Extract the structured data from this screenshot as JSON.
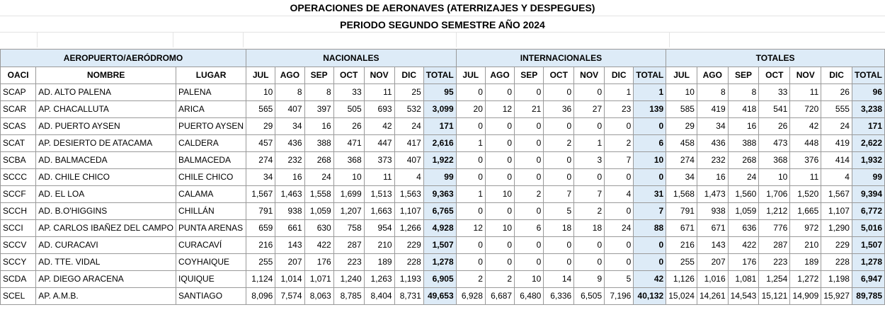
{
  "title": "OPERACIONES DE AERONAVES (ATERRIZAJES Y DESPEGUES)",
  "subtitle": "PERIODO SEGUNDO SEMESTRE AÑO 2024",
  "groups": {
    "airport": "AEROPUERTO/AERÓDROMO",
    "nacionales": "NACIONALES",
    "internacionales": "INTERNACIONALES",
    "totales": "TOTALES"
  },
  "columns": {
    "oaci": "OACI",
    "nombre": "NOMBRE",
    "lugar": "LUGAR",
    "months": [
      "JUL",
      "AGO",
      "SEP",
      "OCT",
      "NOV",
      "DIC"
    ],
    "total": "TOTAL"
  },
  "rows": [
    {
      "oaci": "SCAP",
      "nombre": "AD. ALTO PALENA",
      "lugar": "PALENA",
      "nac": [
        "10",
        "8",
        "8",
        "33",
        "11",
        "25",
        "95"
      ],
      "int": [
        "0",
        "0",
        "0",
        "0",
        "0",
        "1",
        "1"
      ],
      "tot": [
        "10",
        "8",
        "8",
        "33",
        "11",
        "26",
        "96"
      ]
    },
    {
      "oaci": "SCAR",
      "nombre": "AP. CHACALLUTA",
      "lugar": "ARICA",
      "nac": [
        "565",
        "407",
        "397",
        "505",
        "693",
        "532",
        "3,099"
      ],
      "int": [
        "20",
        "12",
        "21",
        "36",
        "27",
        "23",
        "139"
      ],
      "tot": [
        "585",
        "419",
        "418",
        "541",
        "720",
        "555",
        "3,238"
      ]
    },
    {
      "oaci": "SCAS",
      "nombre": "AD. PUERTO AYSEN",
      "lugar": "PUERTO AYSEN",
      "nac": [
        "29",
        "34",
        "16",
        "26",
        "42",
        "24",
        "171"
      ],
      "int": [
        "0",
        "0",
        "0",
        "0",
        "0",
        "0",
        "0"
      ],
      "tot": [
        "29",
        "34",
        "16",
        "26",
        "42",
        "24",
        "171"
      ]
    },
    {
      "oaci": "SCAT",
      "nombre": "AP. DESIERTO DE ATACAMA",
      "lugar": "CALDERA",
      "nac": [
        "457",
        "436",
        "388",
        "471",
        "447",
        "417",
        "2,616"
      ],
      "int": [
        "1",
        "0",
        "0",
        "2",
        "1",
        "2",
        "6"
      ],
      "tot": [
        "458",
        "436",
        "388",
        "473",
        "448",
        "419",
        "2,622"
      ]
    },
    {
      "oaci": "SCBA",
      "nombre": "AD. BALMACEDA",
      "lugar": "BALMACEDA",
      "nac": [
        "274",
        "232",
        "268",
        "368",
        "373",
        "407",
        "1,922"
      ],
      "int": [
        "0",
        "0",
        "0",
        "0",
        "3",
        "7",
        "10"
      ],
      "tot": [
        "274",
        "232",
        "268",
        "368",
        "376",
        "414",
        "1,932"
      ]
    },
    {
      "oaci": "SCCC",
      "nombre": "AD. CHILE CHICO",
      "lugar": "CHILE CHICO",
      "nac": [
        "34",
        "16",
        "24",
        "10",
        "11",
        "4",
        "99"
      ],
      "int": [
        "0",
        "0",
        "0",
        "0",
        "0",
        "0",
        "0"
      ],
      "tot": [
        "34",
        "16",
        "24",
        "10",
        "11",
        "4",
        "99"
      ]
    },
    {
      "oaci": "SCCF",
      "nombre": "AD. EL LOA",
      "lugar": "CALAMA",
      "nac": [
        "1,567",
        "1,463",
        "1,558",
        "1,699",
        "1,513",
        "1,563",
        "9,363"
      ],
      "int": [
        "1",
        "10",
        "2",
        "7",
        "7",
        "4",
        "31"
      ],
      "tot": [
        "1,568",
        "1,473",
        "1,560",
        "1,706",
        "1,520",
        "1,567",
        "9,394"
      ]
    },
    {
      "oaci": "SCCH",
      "nombre": "AD. B.O'HIGGINS",
      "lugar": "CHILLÁN",
      "nac": [
        "791",
        "938",
        "1,059",
        "1,207",
        "1,663",
        "1,107",
        "6,765"
      ],
      "int": [
        "0",
        "0",
        "0",
        "5",
        "2",
        "0",
        "7"
      ],
      "tot": [
        "791",
        "938",
        "1,059",
        "1,212",
        "1,665",
        "1,107",
        "6,772"
      ]
    },
    {
      "oaci": "SCCI",
      "nombre": "AP. CARLOS IBAÑEZ DEL CAMPO",
      "lugar": "PUNTA ARENAS",
      "nac": [
        "659",
        "661",
        "630",
        "758",
        "954",
        "1,266",
        "4,928"
      ],
      "int": [
        "12",
        "10",
        "6",
        "18",
        "18",
        "24",
        "88"
      ],
      "tot": [
        "671",
        "671",
        "636",
        "776",
        "972",
        "1,290",
        "5,016"
      ]
    },
    {
      "oaci": "SCCV",
      "nombre": "AD. CURACAVI",
      "lugar": "CURACAVÍ",
      "nac": [
        "216",
        "143",
        "422",
        "287",
        "210",
        "229",
        "1,507"
      ],
      "int": [
        "0",
        "0",
        "0",
        "0",
        "0",
        "0",
        "0"
      ],
      "tot": [
        "216",
        "143",
        "422",
        "287",
        "210",
        "229",
        "1,507"
      ]
    },
    {
      "oaci": "SCCY",
      "nombre": "AD. TTE. VIDAL",
      "lugar": "COYHAIQUE",
      "nac": [
        "255",
        "207",
        "176",
        "223",
        "189",
        "228",
        "1,278"
      ],
      "int": [
        "0",
        "0",
        "0",
        "0",
        "0",
        "0",
        "0"
      ],
      "tot": [
        "255",
        "207",
        "176",
        "223",
        "189",
        "228",
        "1,278"
      ]
    },
    {
      "oaci": "SCDA",
      "nombre": "AP. DIEGO ARACENA",
      "lugar": "IQUIQUE",
      "nac": [
        "1,124",
        "1,014",
        "1,071",
        "1,240",
        "1,263",
        "1,193",
        "6,905"
      ],
      "int": [
        "2",
        "2",
        "10",
        "14",
        "9",
        "5",
        "42"
      ],
      "tot": [
        "1,126",
        "1,016",
        "1,081",
        "1,254",
        "1,272",
        "1,198",
        "6,947"
      ]
    },
    {
      "oaci": "SCEL",
      "nombre": "AP. A.M.B.",
      "lugar": "SANTIAGO",
      "nac": [
        "8,096",
        "7,574",
        "8,063",
        "8,785",
        "8,404",
        "8,731",
        "49,653"
      ],
      "int": [
        "6,928",
        "6,687",
        "6,480",
        "6,336",
        "6,505",
        "7,196",
        "40,132"
      ],
      "tot": [
        "15,024",
        "14,261",
        "14,543",
        "15,121",
        "14,909",
        "15,927",
        "89,785"
      ]
    }
  ]
}
